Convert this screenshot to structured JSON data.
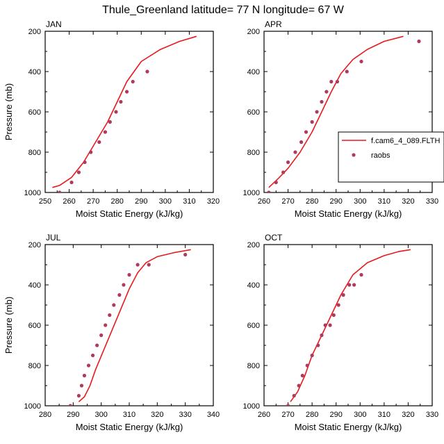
{
  "figure_title": "Thule_Greenland  latitude= 77 N longitude= 67 W",
  "colors": {
    "model": "#e8191c",
    "obs": "#b03a5e"
  },
  "legend": {
    "model_label": "f.cam6_4_089.FLTH",
    "obs_label": "raobs"
  },
  "chart_data": [
    {
      "type": "line",
      "panel": "JAN",
      "xlabel": "Moist Static Energy (kJ/kg)",
      "ylabel": "Pressure (mb)",
      "xlim": [
        250,
        320
      ],
      "ylim": [
        1000,
        200
      ],
      "xticks": [
        250,
        260,
        270,
        280,
        290,
        300,
        310,
        320
      ],
      "yticks": [
        200,
        400,
        600,
        800,
        1000
      ],
      "series": [
        {
          "name": "f.cam6_4_089.FLTH",
          "kind": "line",
          "x": [
            253,
            256,
            261,
            266,
            271,
            276,
            280,
            284,
            290,
            298,
            306,
            313
          ],
          "y": [
            975,
            965,
            925,
            850,
            750,
            650,
            550,
            450,
            350,
            290,
            250,
            225
          ]
        },
        {
          "name": "raobs",
          "kind": "scatter",
          "x": [
            256,
            261,
            264,
            266.5,
            269,
            272.5,
            275,
            277,
            279.5,
            281.5,
            284,
            286.5,
            292.5
          ],
          "y": [
            1000,
            950,
            900,
            850,
            800,
            750,
            700,
            650,
            600,
            550,
            500,
            450,
            400
          ]
        }
      ]
    },
    {
      "type": "line",
      "panel": "APR",
      "xlabel": "Moist Static Energy (kJ/kg)",
      "ylabel": "",
      "xlim": [
        260,
        330
      ],
      "ylim": [
        1000,
        200
      ],
      "xticks": [
        260,
        270,
        280,
        290,
        300,
        310,
        320,
        330
      ],
      "yticks": [
        200,
        400,
        600,
        800,
        1000
      ],
      "series": [
        {
          "name": "f.cam6_4_089.FLTH",
          "kind": "line",
          "x": [
            262,
            266,
            270,
            275,
            280,
            284,
            288,
            292,
            297,
            303,
            310,
            318
          ],
          "y": [
            975,
            930,
            880,
            800,
            700,
            600,
            500,
            410,
            340,
            290,
            250,
            225
          ]
        },
        {
          "name": "raobs",
          "kind": "scatter",
          "x": [
            262,
            265,
            268,
            270,
            273,
            275.5,
            277.5,
            280,
            282,
            284,
            286,
            288,
            290.5,
            294.5,
            300.5,
            324.5
          ],
          "y": [
            1000,
            950,
            900,
            850,
            800,
            750,
            700,
            650,
            600,
            550,
            500,
            450,
            450,
            400,
            350,
            250
          ]
        }
      ]
    },
    {
      "type": "line",
      "panel": "JUL",
      "xlabel": "Moist Static Energy (kJ/kg)",
      "ylabel": "Pressure (mb)",
      "xlim": [
        280,
        340
      ],
      "ylim": [
        1000,
        200
      ],
      "xticks": [
        280,
        290,
        300,
        310,
        320,
        330,
        340
      ],
      "yticks": [
        200,
        400,
        600,
        800,
        1000
      ],
      "series": [
        {
          "name": "f.cam6_4_089.FLTH",
          "kind": "line",
          "x": [
            292,
            294,
            296,
            298,
            301,
            304,
            307,
            310,
            313,
            316,
            320,
            326,
            332
          ],
          "y": [
            980,
            955,
            900,
            820,
            720,
            620,
            520,
            420,
            340,
            290,
            260,
            240,
            225
          ]
        },
        {
          "name": "raobs",
          "kind": "scatter",
          "x": [
            289,
            292,
            293,
            294,
            295.5,
            297,
            298.5,
            300,
            301.5,
            303,
            304.5,
            306.5,
            308,
            310,
            313,
            317,
            330
          ],
          "y": [
            1000,
            950,
            900,
            850,
            800,
            750,
            700,
            650,
            600,
            550,
            500,
            450,
            400,
            350,
            300,
            300,
            250
          ]
        }
      ]
    },
    {
      "type": "line",
      "panel": "OCT",
      "xlabel": "Moist Static Energy (kJ/kg)",
      "ylabel": "",
      "xlim": [
        260,
        330
      ],
      "ylim": [
        1000,
        200
      ],
      "xticks": [
        260,
        270,
        280,
        290,
        300,
        310,
        320,
        330
      ],
      "yticks": [
        200,
        400,
        600,
        800,
        1000
      ],
      "series": [
        {
          "name": "f.cam6_4_089.FLTH",
          "kind": "line",
          "x": [
            271,
            274,
            277,
            280,
            284,
            288,
            292,
            297,
            303,
            310,
            316,
            321
          ],
          "y": [
            980,
            930,
            850,
            750,
            650,
            550,
            450,
            350,
            290,
            255,
            235,
            225
          ]
        },
        {
          "name": "raobs",
          "kind": "scatter",
          "x": [
            270,
            272.5,
            274.5,
            276,
            278,
            280,
            282.5,
            284,
            285.5,
            287.5,
            289,
            291,
            293,
            295.5,
            297.5,
            300.5
          ],
          "y": [
            1000,
            950,
            900,
            850,
            800,
            750,
            700,
            650,
            600,
            600,
            550,
            500,
            450,
            400,
            400,
            350
          ]
        }
      ]
    }
  ]
}
